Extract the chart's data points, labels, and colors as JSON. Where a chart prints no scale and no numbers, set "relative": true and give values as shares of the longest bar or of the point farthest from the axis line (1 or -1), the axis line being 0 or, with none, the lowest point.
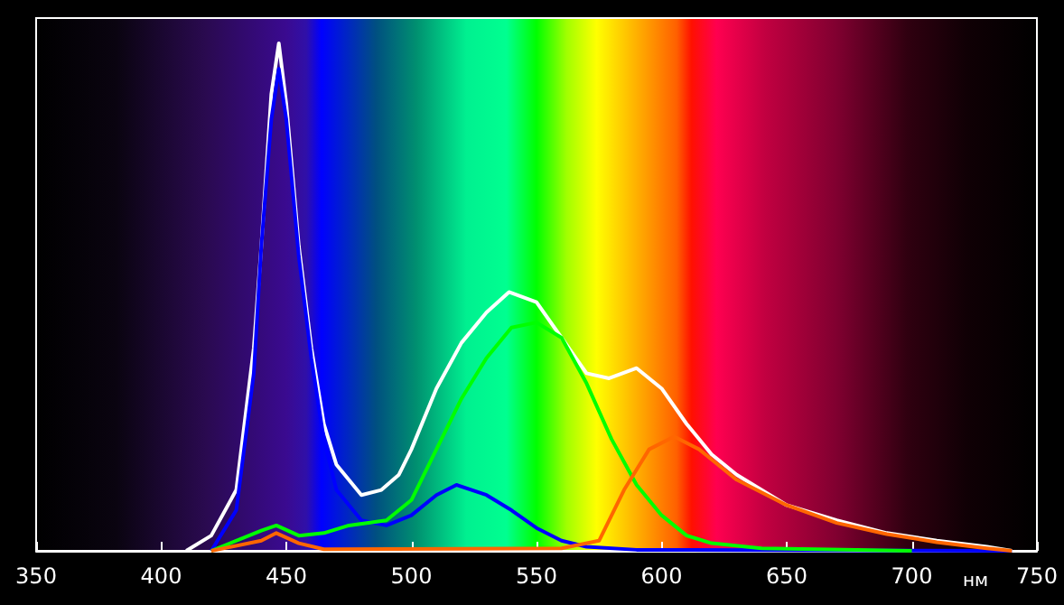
{
  "chart_data": {
    "type": "line",
    "relative": true,
    "xlabel": "нм",
    "xlim": [
      350,
      750
    ],
    "xticks": [
      350,
      400,
      450,
      500,
      550,
      600,
      650,
      700,
      750
    ],
    "grid": false,
    "marker": "none",
    "line_style": "solid",
    "series": [
      {
        "color": "#ffffff",
        "x": [
          410,
          420,
          430,
          437,
          440,
          444,
          447,
          450,
          455,
          460,
          465,
          470,
          480,
          488,
          495,
          500,
          510,
          520,
          530,
          539,
          550,
          560,
          570,
          579,
          590,
          600,
          610,
          620,
          630,
          650,
          670,
          690,
          710,
          730,
          740
        ],
        "values": [
          0,
          0.03,
          0.12,
          0.4,
          0.6,
          0.9,
          1.0,
          0.88,
          0.6,
          0.4,
          0.25,
          0.17,
          0.11,
          0.12,
          0.15,
          0.2,
          0.32,
          0.41,
          0.47,
          0.51,
          0.49,
          0.42,
          0.35,
          0.34,
          0.36,
          0.32,
          0.25,
          0.19,
          0.15,
          0.09,
          0.06,
          0.035,
          0.02,
          0.008,
          0
        ]
      },
      {
        "color": "#0000ff",
        "x": [
          420,
          430,
          437,
          440,
          444,
          447,
          450,
          455,
          460,
          465,
          470,
          480,
          490,
          500,
          510,
          518,
          530,
          540,
          550,
          560,
          570,
          590,
          740
        ],
        "values": [
          0,
          0.08,
          0.35,
          0.6,
          0.85,
          0.95,
          0.85,
          0.58,
          0.38,
          0.22,
          0.12,
          0.06,
          0.05,
          0.07,
          0.11,
          0.13,
          0.11,
          0.08,
          0.045,
          0.02,
          0.008,
          0.002,
          0
        ]
      },
      {
        "color": "#00ff00",
        "x": [
          420,
          440,
          446,
          455,
          465,
          475,
          490,
          500,
          510,
          520,
          530,
          540,
          550,
          560,
          570,
          580,
          590,
          600,
          610,
          620,
          640,
          700
        ],
        "values": [
          0,
          0.04,
          0.05,
          0.03,
          0.035,
          0.05,
          0.06,
          0.1,
          0.2,
          0.3,
          0.38,
          0.44,
          0.45,
          0.42,
          0.33,
          0.22,
          0.13,
          0.07,
          0.03,
          0.015,
          0.005,
          0
        ]
      },
      {
        "color": "#ff6600",
        "x": [
          420,
          440,
          446,
          455,
          465,
          560,
          575,
          585,
          595,
          605,
          615,
          630,
          650,
          670,
          690,
          710,
          730,
          740
        ],
        "values": [
          0,
          0.02,
          0.035,
          0.015,
          0.003,
          0.005,
          0.02,
          0.12,
          0.2,
          0.225,
          0.2,
          0.14,
          0.09,
          0.055,
          0.033,
          0.017,
          0.005,
          0
        ]
      }
    ]
  }
}
